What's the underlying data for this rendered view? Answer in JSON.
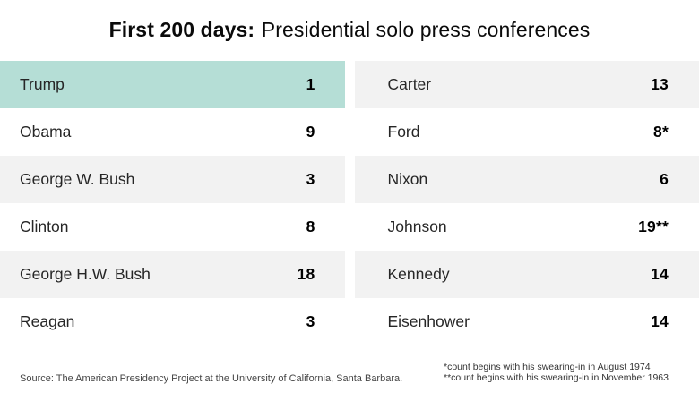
{
  "title": {
    "bold": "First 200 days:",
    "rest": "Presidential solo press conferences"
  },
  "columns": {
    "left": [
      {
        "name": "Trump",
        "value": "1"
      },
      {
        "name": "Obama",
        "value": "9"
      },
      {
        "name": "George W. Bush",
        "value": "3"
      },
      {
        "name": "Clinton",
        "value": "8"
      },
      {
        "name": "George H.W. Bush",
        "value": "18"
      },
      {
        "name": "Reagan",
        "value": "3"
      }
    ],
    "right": [
      {
        "name": "Carter",
        "value": "13"
      },
      {
        "name": "Ford",
        "value": "8*"
      },
      {
        "name": "Nixon",
        "value": "6"
      },
      {
        "name": "Johnson",
        "value": "19**"
      },
      {
        "name": "Kennedy",
        "value": "14"
      },
      {
        "name": "Eisenhower",
        "value": "14"
      }
    ]
  },
  "footer": {
    "source": "Source: The American Presidency Project at the University of California, Santa Barbara.",
    "notes": [
      "*count begins with his swearing-in in August 1974",
      "**count begins with his swearing-in in November 1963"
    ]
  },
  "colors": {
    "highlight": "#b5ded6",
    "row_alt": "#f2f2f2"
  },
  "chart_data": {
    "type": "table",
    "title": "First 200 days: Presidential solo press conferences",
    "categories": [
      "Trump",
      "Obama",
      "George W. Bush",
      "Clinton",
      "George H.W. Bush",
      "Reagan",
      "Carter",
      "Ford",
      "Nixon",
      "Johnson",
      "Kennedy",
      "Eisenhower"
    ],
    "values": [
      1,
      9,
      3,
      8,
      18,
      3,
      13,
      8,
      6,
      19,
      14,
      14
    ],
    "value_labels": [
      "1",
      "9",
      "3",
      "8",
      "18",
      "3",
      "13",
      "8*",
      "6",
      "19**",
      "14",
      "14"
    ],
    "highlighted_category": "Trump",
    "layout": "two-column table, values right-aligned, alternating shaded rows",
    "annotations": [
      "*count begins with his swearing-in in August 1974",
      "**count begins with his swearing-in in November 1963"
    ],
    "source": "Source: The American Presidency Project at the University of California, Santa Barbara."
  }
}
